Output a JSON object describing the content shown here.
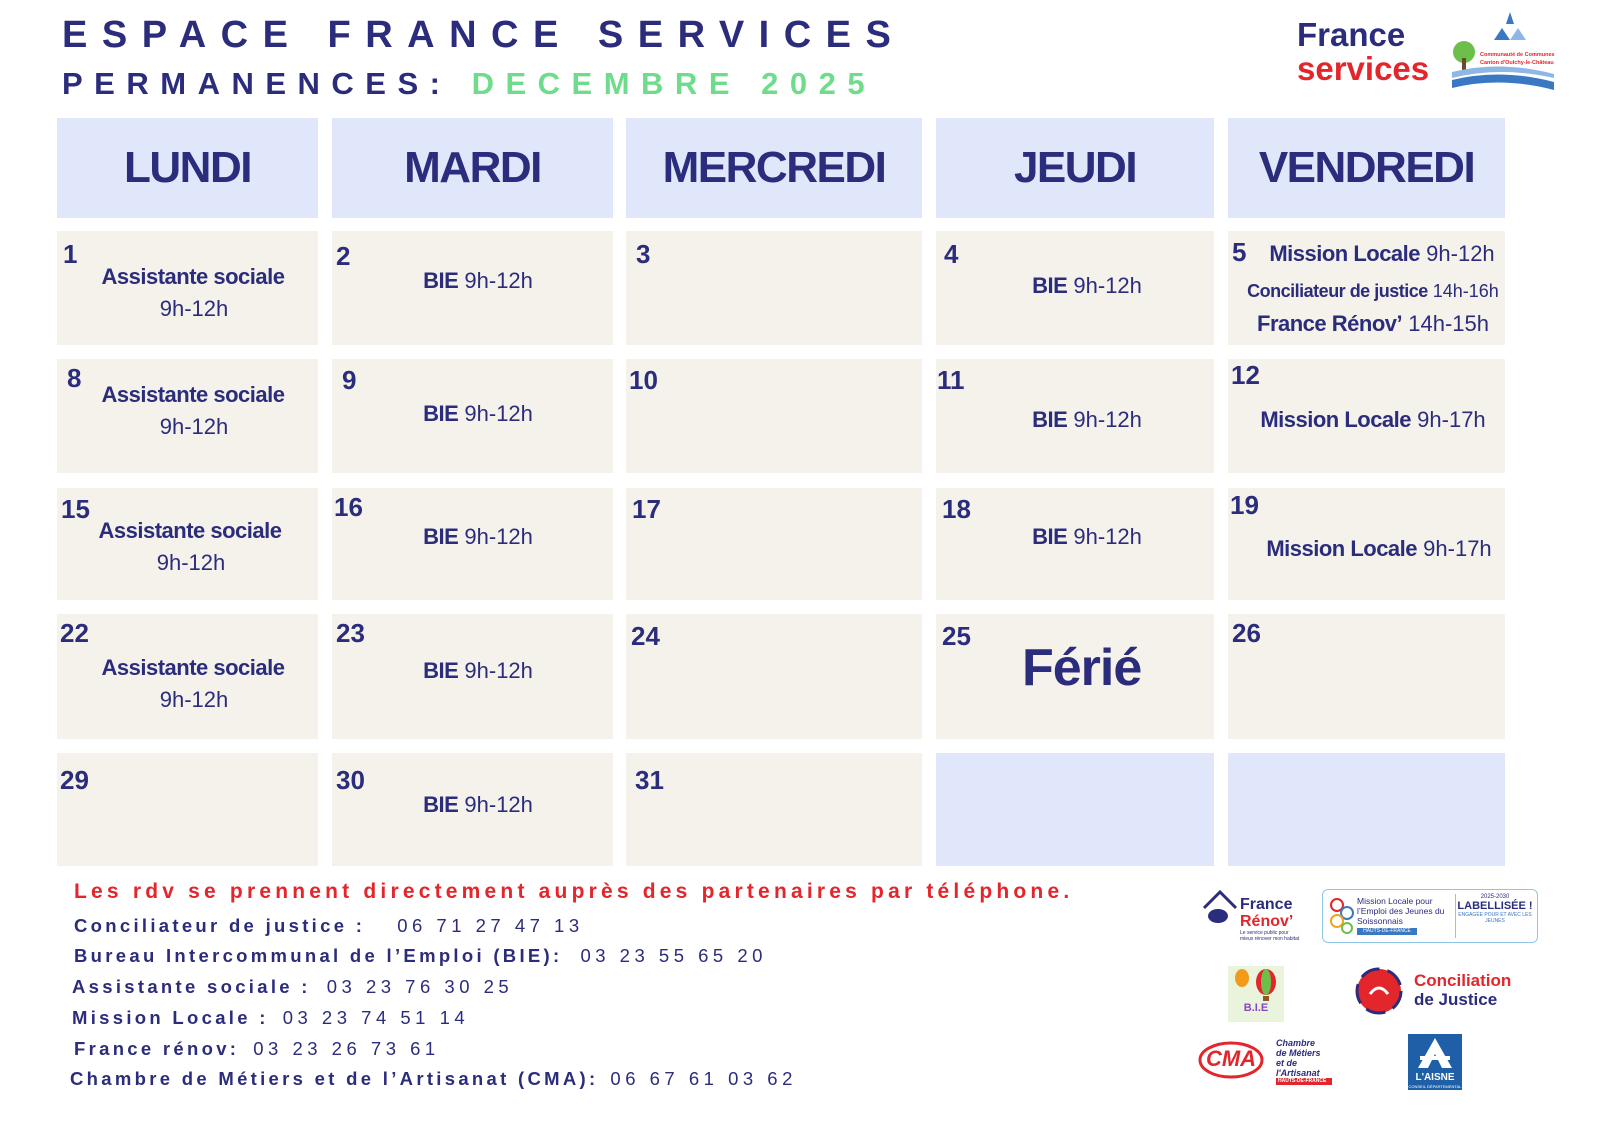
{
  "header": {
    "title": "ESPACE FRANCE SERVICES",
    "subtitle_prefix": "PERMANENCES:",
    "subtitle_month": "DECEMBRE 2025"
  },
  "brand": {
    "logo_line1": "France",
    "logo_line2": "services",
    "partner_logo_text": "Communauté de Communes Canton d'Oulchy-le-Château"
  },
  "colors": {
    "navy": "#2b2d7c",
    "green": "#6fdc8c",
    "red": "#e3262b",
    "header_bg": "#e0e7fb",
    "cell_bg": "#f4f2eb"
  },
  "calendar": {
    "days": [
      "LUNDI",
      "MARDI",
      "MERCREDI",
      "JEUDI",
      "VENDREDI"
    ],
    "weeks": [
      [
        {
          "day": "1",
          "events": [
            {
              "name": "Assistante sociale",
              "time": ""
            },
            {
              "name": "",
              "time": "9h-12h"
            }
          ]
        },
        {
          "day": "2",
          "events": [
            {
              "name": "BIE",
              "time": "9h-12h"
            }
          ]
        },
        {
          "day": "3",
          "events": []
        },
        {
          "day": "4",
          "events": [
            {
              "name": "BIE",
              "time": "9h-12h"
            }
          ]
        },
        {
          "day": "5",
          "events": [
            {
              "name": "Mission Locale",
              "time": "9h-12h"
            },
            {
              "name": "Conciliateur de justice",
              "time": "14h-16h"
            },
            {
              "name": "France Rénov’",
              "time": "14h-15h"
            }
          ]
        }
      ],
      [
        {
          "day": "8",
          "events": [
            {
              "name": "Assistante sociale",
              "time": ""
            },
            {
              "name": "",
              "time": "9h-12h"
            }
          ]
        },
        {
          "day": "9",
          "events": [
            {
              "name": "BIE",
              "time": "9h-12h"
            }
          ]
        },
        {
          "day": "10",
          "events": []
        },
        {
          "day": "11",
          "events": [
            {
              "name": "BIE",
              "time": "9h-12h"
            }
          ]
        },
        {
          "day": "12",
          "events": [
            {
              "name": "Mission Locale",
              "time": "9h-17h"
            }
          ]
        }
      ],
      [
        {
          "day": "15",
          "events": [
            {
              "name": "Assistante sociale",
              "time": ""
            },
            {
              "name": "",
              "time": "9h-12h"
            }
          ]
        },
        {
          "day": "16",
          "events": [
            {
              "name": "BIE",
              "time": "9h-12h"
            }
          ]
        },
        {
          "day": "17",
          "events": []
        },
        {
          "day": "18",
          "events": [
            {
              "name": "BIE",
              "time": "9h-12h"
            }
          ]
        },
        {
          "day": "19",
          "events": [
            {
              "name": "Mission Locale",
              "time": "9h-17h"
            }
          ]
        }
      ],
      [
        {
          "day": "22",
          "events": [
            {
              "name": "Assistante sociale",
              "time": ""
            },
            {
              "name": "",
              "time": "9h-12h"
            }
          ]
        },
        {
          "day": "23",
          "events": [
            {
              "name": "BIE",
              "time": "9h-12h"
            }
          ]
        },
        {
          "day": "24",
          "events": []
        },
        {
          "day": "25",
          "events": [],
          "holiday": "Férié"
        },
        {
          "day": "26",
          "events": []
        }
      ],
      [
        {
          "day": "29",
          "events": []
        },
        {
          "day": "30",
          "events": [
            {
              "name": "BIE",
              "time": "9h-12h"
            }
          ]
        },
        {
          "day": "31",
          "events": []
        },
        {
          "day": "",
          "events": []
        },
        {
          "day": "",
          "events": []
        }
      ]
    ]
  },
  "footer": {
    "notice": "Les rdv se prennent directement auprès des partenaires par téléphone.",
    "contacts": [
      {
        "label": "Conciliateur de justice :",
        "phone": "06 71 27 47 13"
      },
      {
        "label": "Bureau Intercommunal de l’Emploi (BIE):",
        "phone": "03 23 55 65 20"
      },
      {
        "label": "Assistante sociale :",
        "phone": "03 23 76 30 25"
      },
      {
        "label": "Mission Locale :",
        "phone": "03 23 74 51 14"
      },
      {
        "label": "France rénov:",
        "phone": "03 23 26 73 61"
      },
      {
        "label": "Chambre de Métiers et de l’Artisanat (CMA):",
        "phone": "06 67 61 03 62"
      }
    ]
  },
  "partner_logos": {
    "france_renov": {
      "line1": "France",
      "line2": "Rénov’",
      "tagline": "Le service public pour mieux rénover mon habitat"
    },
    "mission_locale": {
      "text": "Mission Locale pour l’Emploi des Jeunes du Soissonnais",
      "region": "HAUTS-DE-FRANCE",
      "badge": "LABELLISÉE !",
      "badge_year": "2025-2030",
      "badge_sub": "ENGAGÉE POUR ET AVEC LES JEUNES"
    },
    "bie": {
      "text": "B.I.E"
    },
    "conciliation": {
      "line1": "Conciliation",
      "line2": "de Justice"
    },
    "cma": {
      "text": "CMA",
      "line1": "Chambre",
      "line2": "de Métiers",
      "line3": "et de l'Artisanat",
      "region": "HAUTS-DE-FRANCE"
    },
    "aisne": {
      "text": "L'AISNE",
      "sub": "CONSEIL DÉPARTEMENTAL"
    }
  }
}
